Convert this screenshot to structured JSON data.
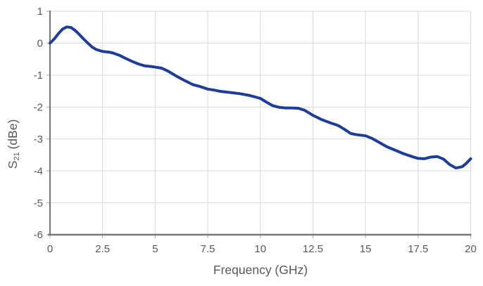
{
  "colors": {
    "line": "#1e3d9b",
    "grid": "#d9d9d9",
    "axis": "#767676",
    "tick": "#a6a6a6",
    "text": "#595959"
  },
  "chart_data": {
    "type": "line",
    "title": "",
    "xlabel": "Frequency (GHz)",
    "ylabel": "S21 (dBe)",
    "ylabel_parts": {
      "base": "S",
      "sub": "21",
      "unit": "(dBe)"
    },
    "xlim": [
      0,
      20
    ],
    "ylim": [
      -6,
      1
    ],
    "grid": true,
    "legend": "none",
    "xticks": {
      "values": [
        0,
        2.5,
        5,
        7.5,
        10,
        12.5,
        15,
        17.5,
        20
      ],
      "labels": [
        "0",
        "2.5",
        "5",
        "7.5",
        "10",
        "12.5",
        "15",
        "17.5",
        "20"
      ]
    },
    "yticks": {
      "values": [
        1,
        0,
        -1,
        -2,
        -3,
        -4,
        -5,
        -6
      ],
      "labels": [
        "1",
        "0",
        "-1",
        "-2",
        "-3",
        "-4",
        "-5",
        "-6"
      ]
    },
    "series": [
      {
        "name": "S21",
        "x": [
          0,
          0.2,
          0.4,
          0.6,
          0.8,
          1.0,
          1.2,
          1.4,
          1.6,
          1.8,
          2.0,
          2.2,
          2.5,
          2.8,
          3.0,
          3.3,
          3.6,
          3.9,
          4.2,
          4.5,
          4.8,
          5.0,
          5.3,
          5.6,
          6.0,
          6.4,
          6.8,
          7.1,
          7.5,
          7.8,
          8.1,
          8.5,
          9.0,
          9.5,
          10.0,
          10.3,
          10.6,
          10.9,
          11.2,
          11.5,
          11.8,
          12.1,
          12.5,
          12.9,
          13.3,
          13.7,
          14.0,
          14.3,
          14.6,
          15.0,
          15.3,
          15.6,
          16.0,
          16.4,
          16.8,
          17.2,
          17.5,
          17.8,
          18.1,
          18.4,
          18.7,
          19.0,
          19.3,
          19.6,
          19.8,
          20.0
        ],
        "y": [
          0,
          0.13,
          0.3,
          0.44,
          0.51,
          0.49,
          0.4,
          0.27,
          0.13,
          0.0,
          -0.12,
          -0.2,
          -0.26,
          -0.28,
          -0.31,
          -0.38,
          -0.48,
          -0.57,
          -0.65,
          -0.71,
          -0.73,
          -0.75,
          -0.78,
          -0.87,
          -1.03,
          -1.17,
          -1.3,
          -1.35,
          -1.44,
          -1.47,
          -1.51,
          -1.54,
          -1.58,
          -1.64,
          -1.73,
          -1.85,
          -1.96,
          -2.01,
          -2.03,
          -2.03,
          -2.04,
          -2.1,
          -2.26,
          -2.39,
          -2.49,
          -2.58,
          -2.7,
          -2.83,
          -2.87,
          -2.9,
          -2.98,
          -3.09,
          -3.24,
          -3.35,
          -3.46,
          -3.55,
          -3.61,
          -3.62,
          -3.57,
          -3.55,
          -3.63,
          -3.8,
          -3.91,
          -3.87,
          -3.76,
          -3.62
        ]
      }
    ]
  }
}
